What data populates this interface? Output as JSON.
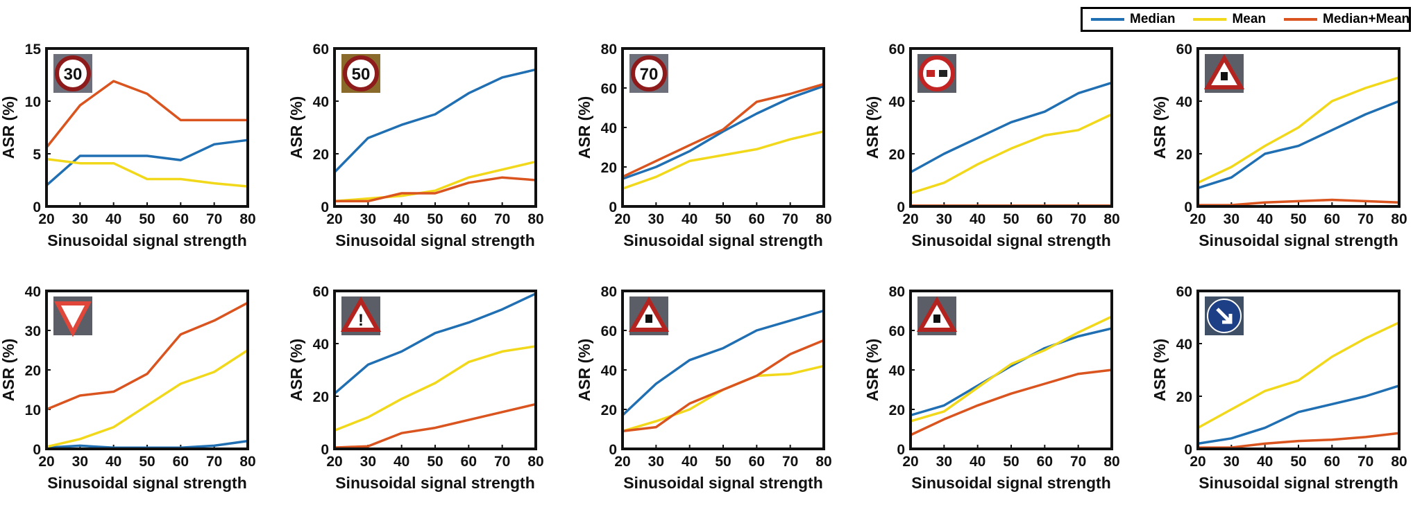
{
  "legend": {
    "items": [
      {
        "name": "Median",
        "color": "#1f6fb2"
      },
      {
        "name": "Mean",
        "color": "#f2d81a"
      },
      {
        "name": "Median+Mean",
        "color": "#d9541e"
      }
    ]
  },
  "chart_data": [
    {
      "type": "line",
      "icon": "speed-limit-30-sign",
      "icon_text": "30",
      "xlabel": "Sinusoidal signal strength",
      "ylabel": "ASR (%)",
      "x": [
        20,
        30,
        40,
        50,
        60,
        70,
        80
      ],
      "xticks": [
        20,
        30,
        40,
        50,
        60,
        70,
        80
      ],
      "ylim": [
        0,
        15
      ],
      "yticks": [
        0,
        5,
        10,
        15
      ],
      "series": [
        {
          "name": "Median",
          "values": [
            2.0,
            4.8,
            4.8,
            4.8,
            4.4,
            5.9,
            6.3
          ]
        },
        {
          "name": "Mean",
          "values": [
            4.5,
            4.1,
            4.1,
            2.6,
            2.6,
            2.2,
            1.9
          ]
        },
        {
          "name": "Median+Mean",
          "values": [
            5.6,
            9.6,
            11.9,
            10.7,
            8.2,
            8.2,
            8.2
          ]
        }
      ]
    },
    {
      "type": "line",
      "icon": "speed-limit-50-sign",
      "icon_text": "50",
      "xlabel": "Sinusoidal signal strength",
      "ylabel": "ASR (%)",
      "x": [
        20,
        30,
        40,
        50,
        60,
        70,
        80
      ],
      "xticks": [
        20,
        30,
        40,
        50,
        60,
        70,
        80
      ],
      "ylim": [
        0,
        60
      ],
      "yticks": [
        0,
        20,
        40,
        60
      ],
      "series": [
        {
          "name": "Median",
          "values": [
            13,
            26,
            31,
            35,
            43,
            49,
            52
          ]
        },
        {
          "name": "Mean",
          "values": [
            2,
            3,
            4,
            6,
            11,
            14,
            17
          ]
        },
        {
          "name": "Median+Mean",
          "values": [
            2,
            2,
            5,
            5,
            9,
            11,
            10
          ]
        }
      ]
    },
    {
      "type": "line",
      "icon": "speed-limit-70-sign",
      "icon_text": "70",
      "xlabel": "Sinusoidal signal strength",
      "ylabel": "ASR (%)",
      "x": [
        20,
        30,
        40,
        50,
        60,
        70,
        80
      ],
      "xticks": [
        20,
        30,
        40,
        50,
        60,
        70,
        80
      ],
      "ylim": [
        0,
        80
      ],
      "yticks": [
        0,
        20,
        40,
        60,
        80
      ],
      "series": [
        {
          "name": "Median",
          "values": [
            14,
            20,
            28,
            38,
            47,
            55,
            61
          ]
        },
        {
          "name": "Mean",
          "values": [
            9,
            15,
            23,
            26,
            29,
            34,
            38
          ]
        },
        {
          "name": "Median+Mean",
          "values": [
            15,
            23,
            31,
            39,
            53,
            57,
            62
          ]
        }
      ]
    },
    {
      "type": "line",
      "icon": "no-overtaking-sign",
      "icon_text": "",
      "xlabel": "Sinusoidal signal strength",
      "ylabel": "ASR (%)",
      "x": [
        20,
        30,
        40,
        50,
        60,
        70,
        80
      ],
      "xticks": [
        20,
        30,
        40,
        50,
        60,
        70,
        80
      ],
      "ylim": [
        0,
        60
      ],
      "yticks": [
        0,
        20,
        40,
        60
      ],
      "series": [
        {
          "name": "Median",
          "values": [
            13,
            20,
            26,
            32,
            36,
            43,
            47
          ]
        },
        {
          "name": "Mean",
          "values": [
            5,
            9,
            16,
            22,
            27,
            29,
            35
          ]
        },
        {
          "name": "Median+Mean",
          "values": [
            0.3,
            0.3,
            0.3,
            0.3,
            0.3,
            0.3,
            0.3
          ]
        }
      ]
    },
    {
      "type": "line",
      "icon": "pedestrian-warning-sign",
      "icon_text": "",
      "xlabel": "Sinusoidal signal strength",
      "ylabel": "ASR (%)",
      "x": [
        20,
        30,
        40,
        50,
        60,
        70,
        80
      ],
      "xticks": [
        20,
        30,
        40,
        50,
        60,
        70,
        80
      ],
      "ylim": [
        0,
        60
      ],
      "yticks": [
        0,
        20,
        40,
        60
      ],
      "series": [
        {
          "name": "Median",
          "values": [
            7,
            11,
            20,
            23,
            29,
            35,
            40
          ]
        },
        {
          "name": "Mean",
          "values": [
            9,
            15,
            23,
            30,
            40,
            45,
            49
          ]
        },
        {
          "name": "Median+Mean",
          "values": [
            0.5,
            0.5,
            1.5,
            2,
            2.5,
            2,
            1.5
          ]
        }
      ]
    },
    {
      "type": "line",
      "icon": "yield-sign",
      "icon_text": "",
      "xlabel": "Sinusoidal signal strength",
      "ylabel": "ASR (%)",
      "x": [
        20,
        30,
        40,
        50,
        60,
        70,
        80
      ],
      "xticks": [
        20,
        30,
        40,
        50,
        60,
        70,
        80
      ],
      "ylim": [
        0,
        40
      ],
      "yticks": [
        0,
        10,
        20,
        30,
        40
      ],
      "series": [
        {
          "name": "Median",
          "values": [
            0.3,
            0.8,
            0.3,
            0.3,
            0.3,
            0.8,
            2
          ]
        },
        {
          "name": "Mean",
          "values": [
            0.5,
            2.5,
            5.5,
            11,
            16.5,
            19.5,
            25
          ]
        },
        {
          "name": "Median+Mean",
          "values": [
            10,
            13.5,
            14.5,
            19,
            29,
            32.5,
            37
          ]
        }
      ]
    },
    {
      "type": "line",
      "icon": "general-caution-sign",
      "icon_text": "!",
      "xlabel": "Sinusoidal signal strength",
      "ylabel": "ASR (%)",
      "x": [
        20,
        30,
        40,
        50,
        60,
        70,
        80
      ],
      "xticks": [
        20,
        30,
        40,
        50,
        60,
        70,
        80
      ],
      "ylim": [
        0,
        60
      ],
      "yticks": [
        0,
        20,
        40,
        60
      ],
      "series": [
        {
          "name": "Median",
          "values": [
            21,
            32,
            37,
            44,
            48,
            53,
            59
          ]
        },
        {
          "name": "Mean",
          "values": [
            7,
            12,
            19,
            25,
            33,
            37,
            39
          ]
        },
        {
          "name": "Median+Mean",
          "values": [
            0.5,
            1,
            6,
            8,
            11,
            14,
            17
          ]
        }
      ]
    },
    {
      "type": "line",
      "icon": "slippery-road-sign",
      "icon_text": "",
      "xlabel": "Sinusoidal signal strength",
      "ylabel": "ASR (%)",
      "x": [
        20,
        30,
        40,
        50,
        60,
        70,
        80
      ],
      "xticks": [
        20,
        30,
        40,
        50,
        60,
        70,
        80
      ],
      "ylim": [
        0,
        80
      ],
      "yticks": [
        0,
        20,
        40,
        60,
        80
      ],
      "series": [
        {
          "name": "Median",
          "values": [
            17,
            33,
            45,
            51,
            60,
            65,
            70
          ]
        },
        {
          "name": "Mean",
          "values": [
            9,
            14,
            20,
            30,
            37,
            38,
            42
          ]
        },
        {
          "name": "Median+Mean",
          "values": [
            9,
            11,
            23,
            30,
            37,
            48,
            55
          ]
        }
      ]
    },
    {
      "type": "line",
      "icon": "road-work-sign",
      "icon_text": "",
      "xlabel": "Sinusoidal signal strength",
      "ylabel": "ASR (%)",
      "x": [
        20,
        30,
        40,
        50,
        60,
        70,
        80
      ],
      "xticks": [
        20,
        30,
        40,
        50,
        60,
        70,
        80
      ],
      "ylim": [
        0,
        80
      ],
      "yticks": [
        0,
        20,
        40,
        60,
        80
      ],
      "series": [
        {
          "name": "Median",
          "values": [
            17,
            22,
            32,
            42,
            51,
            57,
            61
          ]
        },
        {
          "name": "Mean",
          "values": [
            14,
            19,
            31,
            43,
            50,
            59,
            67
          ]
        },
        {
          "name": "Median+Mean",
          "values": [
            7,
            15,
            22,
            28,
            33,
            38,
            40
          ]
        }
      ]
    },
    {
      "type": "line",
      "icon": "keep-right-sign",
      "icon_text": "",
      "xlabel": "Sinusoidal signal strength",
      "ylabel": "ASR (%)",
      "x": [
        20,
        30,
        40,
        50,
        60,
        70,
        80
      ],
      "xticks": [
        20,
        30,
        40,
        50,
        60,
        70,
        80
      ],
      "ylim": [
        0,
        60
      ],
      "yticks": [
        0,
        20,
        40,
        60
      ],
      "series": [
        {
          "name": "Median",
          "values": [
            2,
            4,
            8,
            14,
            17,
            20,
            24
          ]
        },
        {
          "name": "Mean",
          "values": [
            8,
            15,
            22,
            26,
            35,
            42,
            48
          ]
        },
        {
          "name": "Median+Mean",
          "values": [
            0.5,
            0.5,
            2,
            3,
            3.5,
            4.5,
            6
          ]
        }
      ]
    }
  ]
}
